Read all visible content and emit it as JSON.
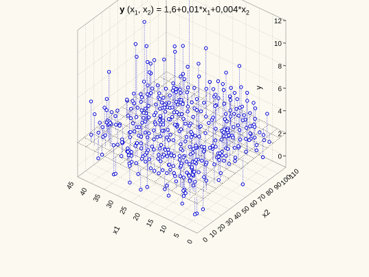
{
  "chart_data": {
    "type": "scatter3d",
    "title": {
      "prefix": "y",
      "args": "(x",
      "sub1": "1",
      "sep": ", x",
      "sub2": "2",
      "eq": ") = 1,6+0,01*x",
      "sub3": "1",
      "mid": "+0,004*x",
      "sub4": "2"
    },
    "zlabel": "y",
    "xlabel": "x1",
    "ylabel": "x2",
    "z_ticks": [
      "0",
      "2",
      "4",
      "6",
      "8",
      "10",
      "12"
    ],
    "x_ticks": [
      "0",
      "5",
      "10",
      "15",
      "20",
      "25",
      "30",
      "35",
      "40",
      "45"
    ],
    "y_ticks": [
      "0",
      "10",
      "20",
      "30",
      "40",
      "50",
      "60",
      "70",
      "80",
      "90",
      "100",
      "110"
    ],
    "zlim": [
      -1,
      12
    ],
    "xlim": [
      0,
      45
    ],
    "ylim": [
      0,
      110
    ],
    "fitted_surface": {
      "intercept": 1.6,
      "coef_x1": 0.01,
      "coef_x2": 0.004
    },
    "point_count": 420,
    "colors": {
      "points": "#0000d0",
      "grid": "#b8b8b8",
      "surface": "#202020",
      "background": "#fcf9f0"
    },
    "grid": true
  }
}
